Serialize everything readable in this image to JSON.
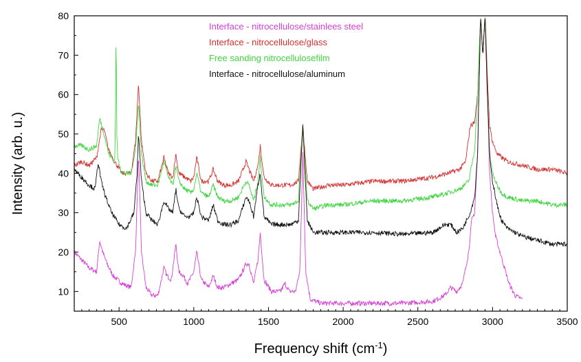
{
  "chart_data": {
    "type": "line",
    "title": "",
    "xlabel": "Frequency shift (cm",
    "xlabel_sup": "-1",
    "xlabel_end": ")",
    "ylabel": "Intensity (arb. u.)",
    "xlim": [
      200,
      3500
    ],
    "ylim": [
      5,
      80
    ],
    "xticks": [
      500,
      1000,
      1500,
      2000,
      2500,
      3000,
      3500
    ],
    "yticks": [
      10,
      20,
      30,
      40,
      50,
      60,
      70,
      80
    ],
    "grid": false,
    "legend_position": "top-center",
    "series": [
      {
        "name": "Interface - nitrocellulose/stainlees steel",
        "color": "#d63fd6",
        "x": [
          200,
          250,
          300,
          350,
          370,
          390,
          420,
          460,
          520,
          580,
          610,
          630,
          650,
          680,
          720,
          760,
          800,
          820,
          850,
          880,
          900,
          930,
          960,
          1000,
          1020,
          1050,
          1100,
          1130,
          1160,
          1200,
          1250,
          1300,
          1350,
          1370,
          1400,
          1430,
          1445,
          1470,
          1520,
          1580,
          1610,
          1640,
          1680,
          1710,
          1730,
          1750,
          1780,
          1850,
          2000,
          2200,
          2400,
          2600,
          2680,
          2720,
          2760,
          2800,
          2840,
          2860,
          2880,
          2900,
          2920,
          2935,
          2950,
          2965,
          2980,
          3000,
          3020,
          3050,
          3080,
          3110,
          3150,
          3200
        ],
        "y": [
          20,
          18,
          16,
          15,
          23,
          20,
          17,
          14,
          12,
          11,
          20,
          45,
          20,
          11,
          9,
          9,
          16,
          14,
          13,
          22,
          15,
          14,
          12,
          15,
          20,
          13,
          11,
          14,
          11,
          11,
          12,
          13,
          17,
          17,
          12,
          18,
          25,
          13,
          10,
          10,
          12,
          10,
          10,
          15,
          45,
          15,
          8,
          7,
          7,
          7,
          7,
          7.5,
          9,
          11,
          10,
          12,
          20,
          28,
          30,
          45,
          80,
          70,
          80,
          62,
          40,
          30,
          24,
          20,
          16,
          12,
          9,
          8
        ]
      },
      {
        "name": "Interface - nitrocellulose/glass",
        "color": "#d62f2f",
        "x": [
          200,
          250,
          300,
          350,
          380,
          400,
          430,
          470,
          520,
          580,
          610,
          630,
          650,
          680,
          720,
          760,
          800,
          830,
          860,
          880,
          900,
          940,
          980,
          1000,
          1020,
          1050,
          1100,
          1130,
          1160,
          1200,
          1250,
          1300,
          1350,
          1370,
          1400,
          1430,
          1445,
          1470,
          1520,
          1600,
          1650,
          1700,
          1730,
          1760,
          1800,
          1900,
          2000,
          2200,
          2400,
          2600,
          2700,
          2780,
          2820,
          2850,
          2880,
          2900,
          2920,
          2935,
          2950,
          2965,
          2980,
          3000,
          3030,
          3060,
          3100,
          3200,
          3300,
          3400,
          3500
        ],
        "y": [
          42,
          43,
          42,
          44,
          51,
          51,
          46,
          43,
          40,
          40,
          48,
          63,
          48,
          40,
          38,
          38,
          44,
          40,
          39,
          45,
          40,
          39,
          38,
          39,
          44,
          38,
          38,
          41,
          38,
          37,
          37,
          38,
          43,
          41,
          38,
          42,
          47,
          39,
          37,
          37,
          37,
          38,
          52,
          38,
          36,
          37,
          37,
          38,
          38,
          39,
          40,
          41,
          43,
          52,
          53,
          60,
          80,
          70,
          80,
          65,
          52,
          48,
          45,
          44,
          43,
          42,
          41,
          41,
          40
        ]
      },
      {
        "name": "Free sanding nitrocellulosefilm",
        "color": "#3ed63e",
        "x": [
          200,
          250,
          300,
          350,
          370,
          400,
          430,
          470,
          475,
          480,
          485,
          490,
          520,
          580,
          610,
          630,
          650,
          680,
          720,
          760,
          800,
          830,
          860,
          880,
          900,
          940,
          980,
          1000,
          1020,
          1050,
          1100,
          1130,
          1160,
          1200,
          1250,
          1300,
          1350,
          1370,
          1400,
          1430,
          1445,
          1470,
          1520,
          1600,
          1650,
          1700,
          1730,
          1760,
          1800,
          1900,
          2000,
          2200,
          2400,
          2600,
          2700,
          2780,
          2840,
          2880,
          2900,
          2920,
          2935,
          2950,
          2965,
          2980,
          3000,
          3030,
          3060,
          3100,
          3200,
          3300,
          3400,
          3500
        ],
        "y": [
          47,
          47,
          46,
          47,
          54,
          50,
          45,
          43,
          50,
          77,
          50,
          44,
          40,
          40,
          46,
          58,
          45,
          38,
          37,
          37,
          43,
          39,
          37,
          42,
          38,
          36,
          35,
          36,
          40,
          35,
          34,
          37,
          34,
          33,
          33,
          34,
          38,
          37,
          33,
          38,
          44,
          34,
          32,
          32,
          32,
          33,
          52,
          33,
          31,
          32,
          32,
          33,
          33,
          34,
          35,
          36,
          38,
          46,
          60,
          80,
          70,
          80,
          60,
          45,
          40,
          37,
          35,
          34,
          33,
          33,
          32,
          32
        ]
      },
      {
        "name": "Interface - nitrocellulose/aluminum",
        "color": "#111111",
        "x": [
          200,
          250,
          300,
          340,
          360,
          380,
          410,
          450,
          500,
          550,
          600,
          620,
          630,
          650,
          680,
          720,
          760,
          800,
          830,
          860,
          880,
          900,
          940,
          980,
          1000,
          1020,
          1050,
          1100,
          1130,
          1160,
          1200,
          1250,
          1300,
          1350,
          1370,
          1400,
          1430,
          1445,
          1470,
          1520,
          1600,
          1650,
          1700,
          1730,
          1760,
          1800,
          1900,
          2000,
          2200,
          2400,
          2600,
          2680,
          2720,
          2760,
          2800,
          2850,
          2880,
          2900,
          2920,
          2935,
          2950,
          2965,
          2980,
          3000,
          3030,
          3060,
          3100,
          3150,
          3200,
          3300,
          3400,
          3500
        ],
        "y": [
          41,
          39,
          37,
          36,
          43,
          38,
          34,
          30,
          27,
          26,
          30,
          40,
          50,
          38,
          30,
          28,
          27,
          33,
          31,
          30,
          36,
          31,
          29,
          29,
          30,
          34,
          29,
          28,
          32,
          28,
          27,
          27,
          28,
          34,
          33,
          29,
          37,
          40,
          29,
          27,
          27,
          27,
          28,
          52,
          28,
          25,
          25,
          25,
          25,
          24.5,
          25,
          27,
          27,
          25,
          26,
          30,
          34,
          45,
          80,
          70,
          80,
          60,
          45,
          38,
          32,
          28,
          26,
          25,
          24,
          23,
          22,
          22
        ]
      }
    ]
  }
}
